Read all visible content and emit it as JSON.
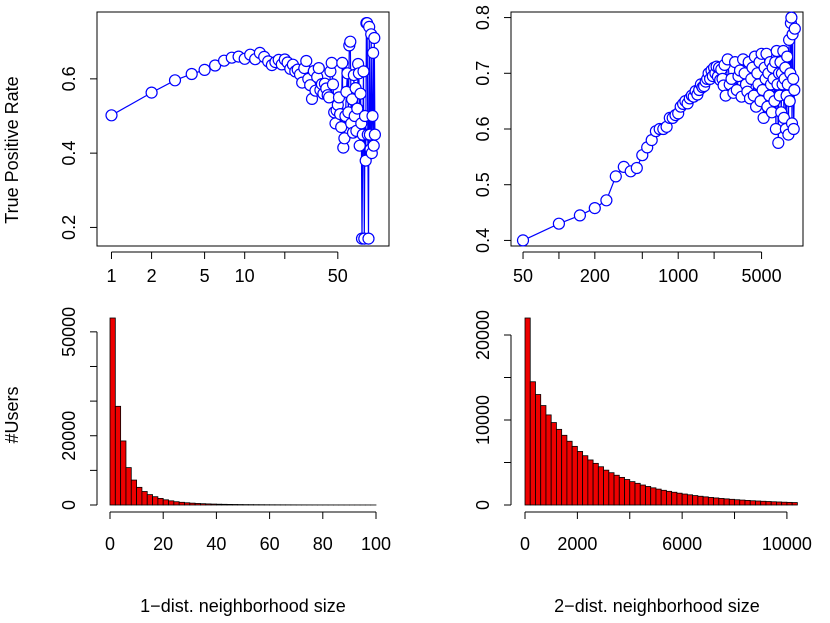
{
  "chart_data": [
    {
      "id": "tpr_1dist",
      "type": "scatter",
      "title": "",
      "xlabel": "",
      "ylabel": "True Positive Rate",
      "xscale": "log",
      "xlim": [
        0.82,
        115
      ],
      "ylim": [
        0.15,
        0.78
      ],
      "xticks": [
        1,
        2,
        5,
        10,
        20,
        50
      ],
      "xtick_labels": [
        "1",
        "2",
        "5",
        "10",
        "",
        "50"
      ],
      "yticks": [
        0.2,
        0.4,
        0.6
      ],
      "ytick_labels": [
        "0.2",
        "0.4",
        "0.6"
      ],
      "grid": false,
      "marker": "open-circle",
      "connected": true,
      "color": "#0000ff",
      "series": [
        {
          "x": [
            1,
            2,
            3,
            4,
            5,
            6,
            7,
            8,
            9,
            10,
            11,
            12,
            13,
            14,
            15,
            16,
            17,
            18,
            19,
            20,
            21,
            22,
            23,
            24,
            25,
            26,
            27,
            28,
            29,
            30,
            31,
            32,
            33,
            34,
            35,
            36,
            37,
            38,
            39,
            40,
            41,
            42,
            43,
            44,
            45,
            46,
            47,
            48,
            49,
            50,
            51,
            52,
            53,
            54,
            55,
            56,
            57,
            58,
            59,
            60,
            61,
            62,
            63,
            64,
            65,
            66,
            67,
            68,
            69,
            70,
            71,
            72,
            73,
            74,
            75,
            76,
            77,
            78,
            79,
            80,
            81,
            82,
            83,
            84,
            85,
            86,
            87,
            88,
            89,
            90,
            91,
            92,
            93,
            94,
            95
          ],
          "y": [
            0.502,
            0.563,
            0.596,
            0.613,
            0.624,
            0.636,
            0.649,
            0.657,
            0.66,
            0.654,
            0.665,
            0.653,
            0.67,
            0.659,
            0.647,
            0.637,
            0.645,
            0.651,
            0.639,
            0.652,
            0.644,
            0.627,
            0.638,
            0.62,
            0.625,
            0.612,
            0.59,
            0.629,
            0.648,
            0.6,
            0.583,
            0.546,
            0.621,
            0.568,
            0.605,
            0.629,
            0.57,
            0.586,
            0.56,
            0.587,
            0.574,
            0.556,
            0.55,
            0.62,
            0.643,
            0.585,
            0.51,
            0.48,
            0.515,
            0.53,
            0.55,
            0.505,
            0.47,
            0.643,
            0.415,
            0.44,
            0.5,
            0.565,
            0.615,
            0.51,
            0.69,
            0.7,
            0.48,
            0.545,
            0.455,
            0.61,
            0.5,
            0.575,
            0.46,
            0.52,
            0.64,
            0.615,
            0.42,
            0.56,
            0.48,
            0.17,
            0.45,
            0.62,
            0.17,
            0.5,
            0.38,
            0.75,
            0.75,
            0.45,
            0.17,
            0.74,
            0.45,
            0.41,
            0.72,
            0.4,
            0.5,
            0.67,
            0.42,
            0.71,
            0.45
          ]
        }
      ]
    },
    {
      "id": "tpr_2dist",
      "type": "scatter",
      "title": "",
      "xlabel": "",
      "ylabel": "",
      "xscale": "log",
      "xlim": [
        42,
        10500
      ],
      "ylim": [
        0.39,
        0.81
      ],
      "xticks": [
        50,
        100,
        200,
        500,
        1000,
        2000,
        5000
      ],
      "xtick_labels": [
        "50",
        "",
        "200",
        "",
        "1000",
        "",
        "5000"
      ],
      "yticks": [
        0.4,
        0.5,
        0.6,
        0.7,
        0.8
      ],
      "ytick_labels": [
        "0.4",
        "0.5",
        "0.6",
        "0.7",
        "0.8"
      ],
      "grid": false,
      "marker": "open-circle",
      "connected": true,
      "color": "#0000ff",
      "series": [
        {
          "x": [
            50,
            100,
            150,
            200,
            250,
            300,
            350,
            400,
            450,
            500,
            550,
            600,
            650,
            700,
            750,
            800,
            850,
            900,
            950,
            1000,
            1050,
            1100,
            1150,
            1200,
            1250,
            1300,
            1350,
            1400,
            1450,
            1500,
            1550,
            1600,
            1650,
            1700,
            1750,
            1800,
            1850,
            1900,
            1950,
            2000,
            2050,
            2100,
            2150,
            2200,
            2250,
            2300,
            2350,
            2400,
            2450,
            2500,
            2600,
            2700,
            2800,
            2900,
            3000,
            3100,
            3200,
            3300,
            3400,
            3500,
            3600,
            3700,
            3800,
            3900,
            4000,
            4100,
            4200,
            4300,
            4400,
            4500,
            4600,
            4700,
            4800,
            4900,
            5000,
            5100,
            5200,
            5300,
            5400,
            5500,
            5600,
            5700,
            5800,
            5900,
            6000,
            6100,
            6200,
            6300,
            6400,
            6500,
            6600,
            6700,
            6800,
            6900,
            7000,
            7100,
            7200,
            7300,
            7400,
            7500,
            7600,
            7700,
            7800,
            7900,
            8000,
            8100,
            8200,
            8300,
            8400,
            8500,
            8600,
            8700,
            8800,
            8900,
            9000,
            9100,
            9200,
            9300,
            9400,
            9500
          ],
          "y": [
            0.4,
            0.43,
            0.445,
            0.458,
            0.472,
            0.515,
            0.532,
            0.524,
            0.53,
            0.553,
            0.567,
            0.58,
            0.596,
            0.6,
            0.6,
            0.604,
            0.62,
            0.62,
            0.625,
            0.628,
            0.64,
            0.645,
            0.65,
            0.646,
            0.655,
            0.66,
            0.658,
            0.668,
            0.662,
            0.67,
            0.68,
            0.675,
            0.677,
            0.685,
            0.69,
            0.7,
            0.69,
            0.705,
            0.695,
            0.71,
            0.7,
            0.712,
            0.694,
            0.71,
            0.688,
            0.707,
            0.69,
            0.678,
            0.715,
            0.66,
            0.725,
            0.68,
            0.69,
            0.665,
            0.72,
            0.67,
            0.695,
            0.705,
            0.658,
            0.725,
            0.7,
            0.68,
            0.667,
            0.72,
            0.655,
            0.69,
            0.71,
            0.66,
            0.73,
            0.64,
            0.7,
            0.68,
            0.72,
            0.65,
            0.735,
            0.67,
            0.62,
            0.71,
            0.69,
            0.735,
            0.64,
            0.7,
            0.66,
            0.72,
            0.68,
            0.63,
            0.71,
            0.69,
            0.65,
            0.72,
            0.6,
            0.74,
            0.68,
            0.575,
            0.7,
            0.66,
            0.72,
            0.63,
            0.7,
            0.68,
            0.74,
            0.62,
            0.69,
            0.71,
            0.6,
            0.66,
            0.73,
            0.68,
            0.59,
            0.76,
            0.65,
            0.7,
            0.79,
            0.8,
            0.61,
            0.77,
            0.69,
            0.6,
            0.67,
            0.78
          ]
        }
      ]
    },
    {
      "id": "hist_1dist",
      "type": "bar",
      "title": "",
      "xlabel": "1−dist. neighborhood size",
      "ylabel": "#Users",
      "bin_width": 2,
      "bin_start": 0,
      "xlim": [
        0,
        100
      ],
      "ylim": [
        0,
        54000
      ],
      "xticks": [
        0,
        20,
        40,
        60,
        80,
        100
      ],
      "xtick_labels": [
        "0",
        "20",
        "40",
        "60",
        "80",
        "100"
      ],
      "yticks": [
        0,
        20000,
        50000
      ],
      "ytick_labels": [
        "0",
        "20000",
        "50000"
      ],
      "ytick_positions_minor": [
        10000,
        30000,
        40000
      ],
      "grid": false,
      "color": "#ee0000",
      "values": [
        54000,
        28500,
        18500,
        10800,
        7200,
        5100,
        3900,
        3000,
        2400,
        1900,
        1500,
        1200,
        950,
        780,
        650,
        540,
        450,
        380,
        320,
        270,
        230,
        200,
        170,
        150,
        130,
        110,
        100,
        90,
        80,
        70,
        60,
        55,
        50,
        45,
        40,
        36,
        32,
        29,
        26,
        24,
        22,
        20,
        18,
        16,
        15,
        14,
        13,
        12,
        11,
        10
      ]
    },
    {
      "id": "hist_2dist",
      "type": "bar",
      "title": "",
      "xlabel": "2−dist. neighborhood size",
      "ylabel": "",
      "bin_width": 200,
      "bin_start": 0,
      "xlim": [
        0,
        10500
      ],
      "ylim": [
        0,
        22000
      ],
      "xticks": [
        0,
        2000,
        6000,
        10000
      ],
      "xticks_minor": [
        4000,
        8000
      ],
      "xtick_labels": [
        "0",
        "2000",
        "6000",
        "10000"
      ],
      "yticks": [
        0,
        10000,
        20000
      ],
      "ytick_labels": [
        "0",
        "10000",
        "20000"
      ],
      "ytick_positions_minor": [
        5000,
        15000
      ],
      "grid": false,
      "color": "#ee0000",
      "values": [
        22000,
        14500,
        13000,
        11700,
        10600,
        9700,
        8900,
        8200,
        7500,
        6900,
        6300,
        5800,
        5300,
        4900,
        4500,
        4100,
        3800,
        3500,
        3250,
        3000,
        2750,
        2550,
        2350,
        2180,
        2020,
        1870,
        1730,
        1610,
        1500,
        1390,
        1290,
        1200,
        1110,
        1030,
        960,
        890,
        830,
        770,
        720,
        670,
        620,
        580,
        540,
        500,
        470,
        440,
        410,
        380,
        355,
        330,
        310,
        290
      ]
    }
  ]
}
